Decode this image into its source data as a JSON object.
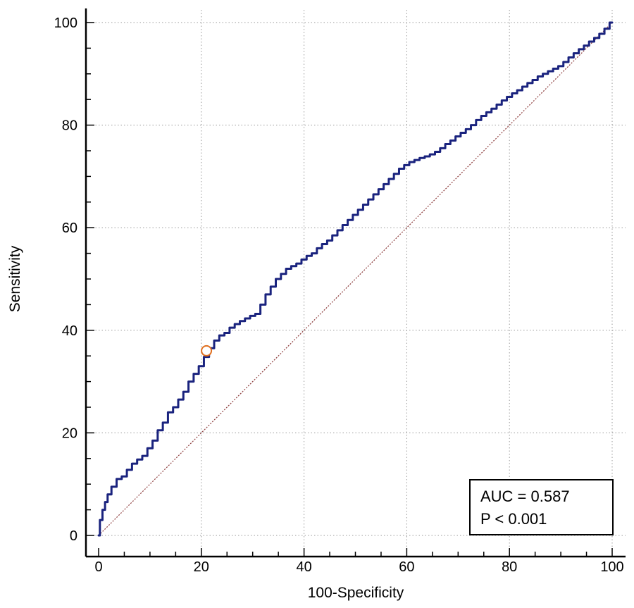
{
  "chart_data": {
    "type": "line",
    "xlabel": "100-Specificity",
    "ylabel": "Sensitivity",
    "xlim": [
      0,
      100
    ],
    "ylim": [
      0,
      100
    ],
    "x_ticks": [
      "0",
      "20",
      "40",
      "60",
      "80",
      "100"
    ],
    "y_ticks": [
      "0",
      "20",
      "40",
      "60",
      "80",
      "100"
    ],
    "grid": true,
    "legend": {
      "placement": "bottom-right",
      "lines": [
        "AUC = 0.587",
        "P < 0.001"
      ]
    },
    "series": [
      {
        "color": "#1a237e",
        "style": "stepped",
        "x": [
          0,
          0.5,
          1,
          1.5,
          2,
          3,
          4,
          5,
          6,
          7,
          8,
          9,
          10,
          11,
          12,
          13,
          14,
          15,
          16,
          17,
          18,
          19,
          20,
          21,
          22,
          23,
          24,
          25,
          26,
          27,
          28,
          29,
          30,
          31,
          32,
          33,
          34,
          35,
          36,
          37,
          38,
          39,
          40,
          41,
          42,
          43,
          44,
          45,
          46,
          47,
          48,
          49,
          50,
          51,
          52,
          53,
          54,
          55,
          56,
          57,
          58,
          59,
          60,
          61,
          62,
          63,
          64,
          65,
          66,
          67,
          68,
          69,
          70,
          71,
          72,
          73,
          74,
          75,
          76,
          77,
          78,
          79,
          80,
          81,
          82,
          83,
          84,
          85,
          86,
          87,
          88,
          89,
          90,
          91,
          92,
          93,
          94,
          95,
          96,
          97,
          98,
          99,
          100
        ],
        "y": [
          0,
          3,
          5,
          6.5,
          8,
          9.5,
          11,
          11.5,
          12.8,
          14,
          14.8,
          15.5,
          17,
          18.5,
          20.5,
          22,
          24,
          25,
          26.5,
          28,
          30,
          31.5,
          33,
          34.8,
          36.5,
          38,
          39,
          39.5,
          40.5,
          41.2,
          41.8,
          42.3,
          42.8,
          43.2,
          45,
          47,
          48.5,
          50,
          51,
          52,
          52.5,
          53,
          53.8,
          54.5,
          55,
          56,
          56.8,
          57.5,
          58.5,
          59.5,
          60.5,
          61.5,
          62.5,
          63.5,
          64.5,
          65.5,
          66.5,
          67.5,
          68.5,
          69.5,
          70.5,
          71.5,
          72.2,
          72.8,
          73.2,
          73.6,
          73.9,
          74.3,
          74.8,
          75.5,
          76.3,
          77,
          77.8,
          78.5,
          79.2,
          80,
          81,
          81.8,
          82.5,
          83.2,
          84,
          84.8,
          85.5,
          86.2,
          86.8,
          87.5,
          88.2,
          88.8,
          89.5,
          90,
          90.5,
          91,
          91.5,
          92.3,
          93.2,
          94,
          94.8,
          95.5,
          96.3,
          97,
          97.8,
          98.8,
          100
        ]
      },
      {
        "color": "#8b3a3a",
        "style": "dotted-diagonal",
        "x": [
          0,
          100
        ],
        "y": [
          0,
          100
        ]
      }
    ],
    "marker": {
      "x": 21,
      "y": 36,
      "color": "#e07020"
    }
  }
}
